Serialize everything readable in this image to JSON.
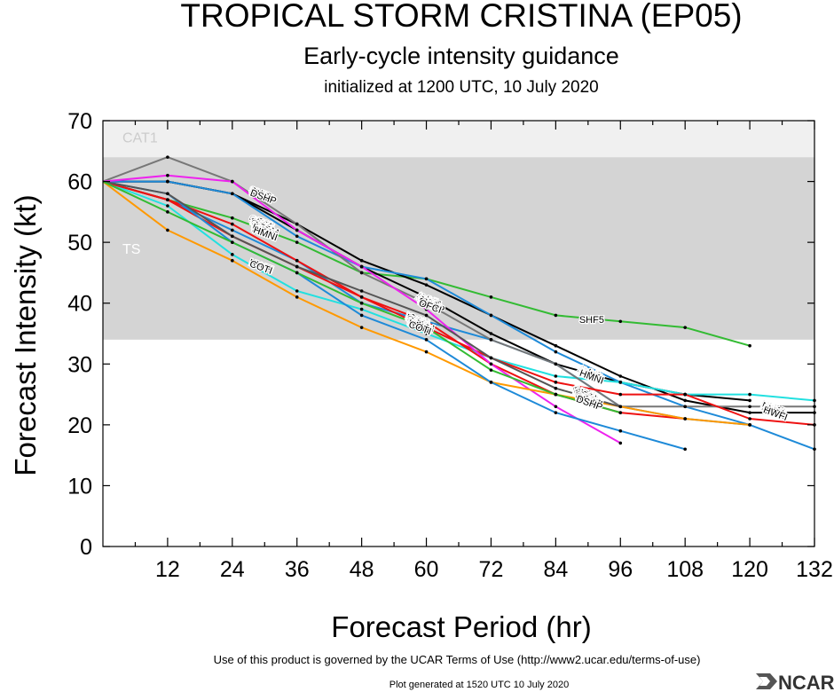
{
  "chart_data": {
    "type": "line",
    "title": "TROPICAL STORM CRISTINA (EP05)",
    "subtitle": "Early-cycle intensity guidance",
    "initialized": "initialized at 1200 UTC, 10 July 2020",
    "xlabel": "Forecast Period (hr)",
    "ylabel": "Forecast Intensity (kt)",
    "xlim": [
      0,
      132
    ],
    "ylim": [
      0,
      70
    ],
    "xticks": [
      12,
      24,
      36,
      48,
      60,
      72,
      84,
      96,
      108,
      120,
      132
    ],
    "yticks": [
      0,
      10,
      20,
      30,
      40,
      50,
      60,
      70
    ],
    "bands": [
      {
        "label": "TS",
        "from": 34,
        "to": 64,
        "color": "#d4d4d4",
        "label_color": "#ffffff"
      },
      {
        "label": "CAT1",
        "from": 64,
        "to": 70,
        "color": "#f0f0f0",
        "label_color": "#cccccc"
      }
    ],
    "series": [
      {
        "name": "SHF5",
        "color": "#33bb33",
        "label_at": 90,
        "points": [
          [
            0,
            60
          ],
          [
            12,
            57
          ],
          [
            24,
            54
          ],
          [
            36,
            50
          ],
          [
            48,
            45
          ],
          [
            60,
            44
          ],
          [
            72,
            41
          ],
          [
            84,
            38
          ],
          [
            96,
            37
          ],
          [
            108,
            36
          ],
          [
            120,
            33
          ]
        ]
      },
      {
        "name": "SHIP",
        "color": "#000000",
        "label_at": 27,
        "points": [
          [
            0,
            60
          ],
          [
            12,
            60
          ],
          [
            24,
            58
          ],
          [
            36,
            53
          ],
          [
            48,
            47
          ],
          [
            60,
            43
          ],
          [
            72,
            38
          ],
          [
            84,
            33
          ],
          [
            96,
            28
          ],
          [
            108,
            24
          ],
          [
            120,
            22
          ],
          [
            132,
            22
          ]
        ]
      },
      {
        "name": "NVGI",
        "color": "#000000",
        "label_at": 114,
        "points": [
          [
            0,
            60
          ],
          [
            12,
            60
          ],
          [
            24,
            58
          ],
          [
            36,
            52
          ],
          [
            48,
            46
          ],
          [
            60,
            41
          ],
          [
            72,
            35
          ],
          [
            84,
            30
          ],
          [
            96,
            27
          ],
          [
            108,
            25
          ],
          [
            120,
            24
          ]
        ]
      },
      {
        "name": "AVNI",
        "color": "#1e8ad8",
        "label_at": 113,
        "points": [
          [
            0,
            60
          ],
          [
            12,
            60
          ],
          [
            24,
            58
          ],
          [
            36,
            51
          ],
          [
            48,
            46
          ],
          [
            60,
            44
          ],
          [
            72,
            38
          ],
          [
            84,
            32
          ],
          [
            96,
            27
          ],
          [
            108,
            23
          ],
          [
            120,
            20
          ],
          [
            132,
            16
          ]
        ]
      },
      {
        "name": "HWFI",
        "color": "#1e8ad8",
        "label_at": 88,
        "points": [
          [
            0,
            60
          ],
          [
            12,
            57
          ],
          [
            24,
            52
          ],
          [
            36,
            47
          ],
          [
            48,
            40
          ],
          [
            60,
            37
          ],
          [
            72,
            34
          ],
          [
            84,
            30
          ],
          [
            96,
            23
          ],
          [
            108,
            21
          ],
          [
            120,
            20
          ]
        ]
      },
      {
        "name": "HMNI",
        "color": "#22e0e0",
        "label_at": 123,
        "points": [
          [
            0,
            60
          ],
          [
            12,
            56
          ],
          [
            24,
            48
          ],
          [
            36,
            42
          ],
          [
            48,
            39
          ],
          [
            60,
            35
          ],
          [
            72,
            31
          ],
          [
            84,
            28
          ],
          [
            96,
            27
          ],
          [
            108,
            25
          ],
          [
            120,
            25
          ],
          [
            132,
            24
          ]
        ]
      },
      {
        "name": "OFCI",
        "color": "#777777",
        "label_at": 25,
        "points": [
          [
            0,
            60
          ],
          [
            12,
            64
          ],
          [
            24,
            60
          ],
          [
            36,
            53
          ],
          [
            48,
            45
          ],
          [
            60,
            40
          ],
          [
            72,
            34
          ],
          [
            84,
            30
          ],
          [
            96,
            23
          ],
          [
            108,
            23
          ],
          [
            120,
            23
          ],
          [
            132,
            23
          ]
        ]
      },
      {
        "name": "IVCN",
        "color": "#ee1111",
        "label_at": 110,
        "points": [
          [
            0,
            60
          ],
          [
            12,
            57
          ],
          [
            24,
            51
          ],
          [
            36,
            46
          ],
          [
            48,
            41
          ],
          [
            60,
            36
          ],
          [
            72,
            31
          ],
          [
            84,
            27
          ],
          [
            96,
            25
          ],
          [
            108,
            25
          ],
          [
            120,
            21
          ],
          [
            132,
            20
          ]
        ]
      },
      {
        "name": "ICON",
        "color": "#ee1111",
        "label_at": 52,
        "points": [
          [
            0,
            60
          ],
          [
            12,
            57
          ],
          [
            24,
            53
          ],
          [
            36,
            47
          ],
          [
            48,
            41
          ],
          [
            60,
            37
          ],
          [
            72,
            30
          ],
          [
            84,
            25
          ],
          [
            96,
            22
          ],
          [
            108,
            21
          ]
        ]
      },
      {
        "name": "DSHP",
        "color": "#ee22ee",
        "label_at": 85,
        "points": [
          [
            0,
            60
          ],
          [
            12,
            61
          ],
          [
            24,
            60
          ],
          [
            36,
            52
          ],
          [
            48,
            46
          ],
          [
            60,
            39
          ],
          [
            72,
            30
          ],
          [
            84,
            23
          ],
          [
            96,
            17
          ]
        ]
      },
      {
        "name": "COTI",
        "color": "#ff9900",
        "label_at": 27,
        "points": [
          [
            0,
            60
          ],
          [
            12,
            52
          ],
          [
            24,
            47
          ],
          [
            36,
            41
          ],
          [
            48,
            36
          ],
          [
            60,
            32
          ],
          [
            72,
            27
          ],
          [
            84,
            25
          ],
          [
            96,
            23
          ],
          [
            108,
            21
          ],
          [
            120,
            20
          ]
        ]
      },
      {
        "name": "HWFI",
        "color": "#1e8ad8",
        "label_at": 123,
        "points": [
          [
            0,
            60
          ],
          [
            12,
            58
          ],
          [
            24,
            50
          ],
          [
            36,
            45
          ],
          [
            48,
            38
          ],
          [
            60,
            34
          ],
          [
            72,
            27
          ],
          [
            84,
            22
          ],
          [
            96,
            19
          ],
          [
            108,
            16
          ]
        ]
      },
      {
        "name": "OFCL",
        "color": "#555555",
        "label_at": 27,
        "points": [
          [
            0,
            60
          ],
          [
            12,
            58
          ],
          [
            24,
            51
          ],
          [
            36,
            46
          ],
          [
            48,
            42
          ],
          [
            60,
            38
          ],
          [
            72,
            31
          ],
          [
            84,
            26
          ],
          [
            96,
            23
          ]
        ]
      },
      {
        "name": "GFEM",
        "color": "#33bb33",
        "label_at": 87,
        "points": [
          [
            0,
            60
          ],
          [
            12,
            55
          ],
          [
            24,
            50
          ],
          [
            36,
            45
          ],
          [
            48,
            40
          ],
          [
            60,
            36
          ],
          [
            72,
            29
          ],
          [
            84,
            25
          ],
          [
            96,
            22
          ]
        ]
      }
    ],
    "label_groups": [
      {
        "x": 27,
        "y": 58.2,
        "labels": [
          "SHIP",
          "NVGI",
          "DSHP"
        ]
      },
      {
        "x": 27,
        "y": 53.5,
        "labels": [
          "OFCI",
          "SHF5",
          "IVCN",
          "OFCL",
          "GFEM",
          "ICON",
          "HWFI",
          "AVNI",
          "HMNI"
        ]
      },
      {
        "x": 27,
        "y": 46.3,
        "labels": [
          "HWFI",
          "COTI"
        ]
      },
      {
        "x": 58,
        "y": 40.8,
        "labels": [
          "AVNI",
          "SHF5",
          "SHIP",
          "NVGI",
          "DSHP",
          "OFCI"
        ]
      },
      {
        "x": 56,
        "y": 37.5,
        "labels": [
          "ICON",
          "IVCN",
          "OFCL",
          "GFEM",
          "HWFI",
          "HMNI",
          "COTI"
        ]
      },
      {
        "x": 88,
        "y": 28.8,
        "labels": [
          "AVNI",
          "NVGI",
          "HWFI",
          "HMNI"
        ]
      },
      {
        "x": 87,
        "y": 25.5,
        "labels": [
          "OFCI",
          "IVCN",
          "COTI",
          "ICON",
          "OFCL",
          "GFEM",
          "SHIP",
          "DSHP"
        ]
      },
      {
        "x": 122,
        "y": 23.0,
        "labels": [
          "HMNI",
          "NVGI",
          "AVNI",
          "IVCN",
          "HWFI"
        ]
      }
    ],
    "grid": false,
    "legend": "none"
  },
  "footer": {
    "terms": "Use of this product is governed by the UCAR Terms of Use (http://www2.ucar.edu/terms-of-use)",
    "generated": "Plot generated at 1520 UTC   10 July 2020",
    "logo": "NCAR"
  }
}
